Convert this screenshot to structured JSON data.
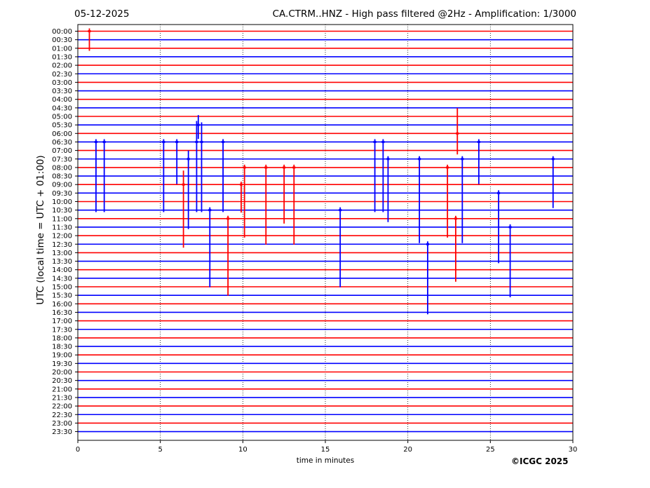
{
  "header": {
    "date": "05-12-2025",
    "title": "CA.CTRM..HNZ - High pass filtered @2Hz - Amplification: 1/3000"
  },
  "footer": {
    "copyright": "©ICGC 2025"
  },
  "chart_data": {
    "type": "line",
    "title": "CA.CTRM..HNZ - High pass filtered @2Hz - Amplification: 1/3000",
    "subtitle": "05-12-2025",
    "xlabel": "time in minutes",
    "ylabel": "UTC (local time = UTC + 01:00)",
    "xlim": [
      0,
      30
    ],
    "x_ticks": [
      "0",
      "5",
      "10",
      "15",
      "20",
      "25",
      "30"
    ],
    "grid": "vertical dotted lines at 5-minute intervals",
    "trace_colors": [
      "#ff0000",
      "#0000ff"
    ],
    "rows": [
      "00:00",
      "00:30",
      "01:00",
      "01:30",
      "02:00",
      "02:30",
      "03:00",
      "03:30",
      "04:00",
      "04:30",
      "05:00",
      "05:30",
      "06:00",
      "06:30",
      "07:00",
      "07:30",
      "08:00",
      "08:30",
      "09:00",
      "09:30",
      "10:00",
      "10:30",
      "11:00",
      "11:30",
      "12:00",
      "12:30",
      "13:00",
      "13:30",
      "14:00",
      "14:30",
      "15:00",
      "15:30",
      "16:00",
      "16:30",
      "17:00",
      "17:30",
      "18:00",
      "18:30",
      "19:00",
      "19:30",
      "20:00",
      "20:30",
      "21:00",
      "21:30",
      "22:00",
      "22:30",
      "23:00",
      "23:30"
    ],
    "events": [
      {
        "row": 0,
        "minute": 0.7,
        "up": 4,
        "down": 28
      },
      {
        "row": 11,
        "minute": 7.3,
        "up": 14,
        "down": 20
      },
      {
        "row": 12,
        "minute": 23.0,
        "up": 36,
        "down": 30
      },
      {
        "row": 13,
        "minute": 1.1,
        "up": 4,
        "down": 100
      },
      {
        "row": 13,
        "minute": 1.6,
        "up": 4,
        "down": 100
      },
      {
        "row": 13,
        "minute": 5.2,
        "up": 4,
        "down": 100
      },
      {
        "row": 13,
        "minute": 6.0,
        "up": 4,
        "down": 60
      },
      {
        "row": 13,
        "minute": 7.2,
        "up": 30,
        "down": 100
      },
      {
        "row": 13,
        "minute": 7.5,
        "up": 28,
        "down": 100
      },
      {
        "row": 13,
        "minute": 8.8,
        "up": 4,
        "down": 100
      },
      {
        "row": 13,
        "minute": 18.0,
        "up": 4,
        "down": 100
      },
      {
        "row": 13,
        "minute": 18.5,
        "up": 4,
        "down": 100
      },
      {
        "row": 13,
        "minute": 24.3,
        "up": 4,
        "down": 60
      },
      {
        "row": 15,
        "minute": 6.7,
        "up": 12,
        "down": 100
      },
      {
        "row": 15,
        "minute": 18.8,
        "up": 4,
        "down": 90
      },
      {
        "row": 15,
        "minute": 20.7,
        "up": 4,
        "down": 120
      },
      {
        "row": 15,
        "minute": 23.3,
        "up": 4,
        "down": 120
      },
      {
        "row": 15,
        "minute": 28.8,
        "up": 4,
        "down": 70
      },
      {
        "row": 16,
        "minute": 10.1,
        "up": 4,
        "down": 100
      },
      {
        "row": 16,
        "minute": 11.4,
        "up": 4,
        "down": 110
      },
      {
        "row": 16,
        "minute": 12.5,
        "up": 4,
        "down": 80
      },
      {
        "row": 16,
        "minute": 13.1,
        "up": 4,
        "down": 110
      },
      {
        "row": 16,
        "minute": 22.4,
        "up": 4,
        "down": 100
      },
      {
        "row": 18,
        "minute": 6.4,
        "up": 20,
        "down": 90
      },
      {
        "row": 18,
        "minute": 9.9,
        "up": 4,
        "down": 40
      },
      {
        "row": 19,
        "minute": 25.5,
        "up": 4,
        "down": 100
      },
      {
        "row": 21,
        "minute": 8.0,
        "up": 4,
        "down": 110
      },
      {
        "row": 21,
        "minute": 15.9,
        "up": 4,
        "down": 110
      },
      {
        "row": 22,
        "minute": 9.1,
        "up": 4,
        "down": 110
      },
      {
        "row": 22,
        "minute": 22.9,
        "up": 4,
        "down": 90
      },
      {
        "row": 23,
        "minute": 26.2,
        "up": 4,
        "down": 100
      },
      {
        "row": 25,
        "minute": 21.2,
        "up": 4,
        "down": 100
      }
    ]
  }
}
